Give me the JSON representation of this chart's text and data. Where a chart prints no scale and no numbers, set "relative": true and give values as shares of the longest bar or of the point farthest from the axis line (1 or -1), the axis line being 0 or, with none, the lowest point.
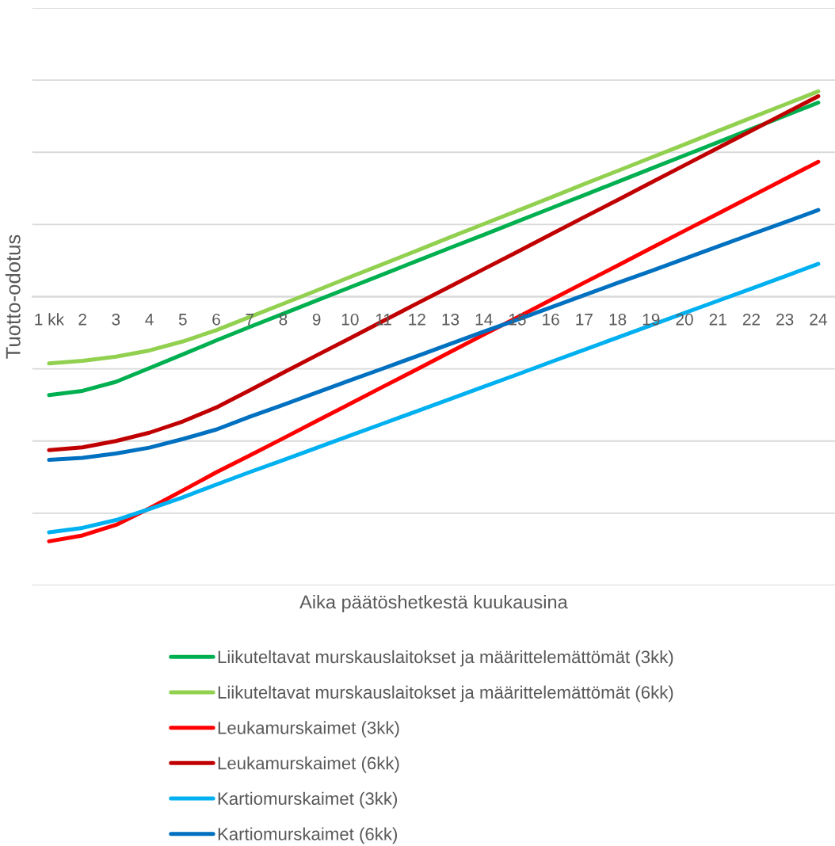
{
  "chart_data": {
    "type": "line",
    "relative": true,
    "xlabel": "Aika päätöshetkestä kuukausina",
    "ylabel": "Tuotto-odotus",
    "categories": [
      "1 kk",
      "2",
      "3",
      "4",
      "5",
      "6",
      "7",
      "8",
      "9",
      "10",
      "11",
      "12",
      "13",
      "14",
      "15",
      "16",
      "17",
      "18",
      "19",
      "20",
      "21",
      "22",
      "23",
      "24"
    ],
    "series": [
      {
        "name": "Liikuteltavat murskauslaitokset ja määrittelemättömät (3kk)",
        "color": "#00b050",
        "values": [
          -0.402,
          -0.385,
          -0.348,
          -0.292,
          -0.236,
          -0.179,
          -0.124,
          -0.07,
          -0.016,
          0.038,
          0.092,
          0.146,
          0.2,
          0.253,
          0.307,
          0.361,
          0.415,
          0.469,
          0.523,
          0.577,
          0.631,
          0.685,
          0.739,
          0.793
        ]
      },
      {
        "name": "Liikuteltavat murskauslaitokset ja määrittelemättömät (6kk)",
        "color": "#92d050",
        "values": [
          -0.273,
          -0.262,
          -0.245,
          -0.22,
          -0.183,
          -0.137,
          -0.083,
          -0.029,
          0.025,
          0.08,
          0.134,
          0.188,
          0.243,
          0.297,
          0.351,
          0.405,
          0.46,
          0.514,
          0.568,
          0.622,
          0.677,
          0.731,
          0.785,
          0.839
        ]
      },
      {
        "name": "Leukamurskaimet (3kk)",
        "color": "#ff0000",
        "values": [
          -1,
          -0.976,
          -0.933,
          -0.865,
          -0.792,
          -0.718,
          -0.649,
          -0.579,
          -0.508,
          -0.438,
          -0.367,
          -0.297,
          -0.226,
          -0.155,
          -0.085,
          -0.014,
          0.057,
          0.127,
          0.198,
          0.269,
          0.339,
          0.41,
          0.481,
          0.551
        ]
      },
      {
        "name": "Leukamurskaimet (6kk)",
        "color": "#c00000",
        "values": [
          -0.627,
          -0.616,
          -0.59,
          -0.556,
          -0.51,
          -0.453,
          -0.383,
          -0.311,
          -0.24,
          -0.17,
          -0.099,
          -0.028,
          0.042,
          0.113,
          0.183,
          0.254,
          0.325,
          0.395,
          0.466,
          0.537,
          0.608,
          0.678,
          0.749,
          0.819
        ]
      },
      {
        "name": "Kartiomurskaimet (3kk)",
        "color": "#00b0f0",
        "values": [
          -0.963,
          -0.945,
          -0.913,
          -0.868,
          -0.82,
          -0.768,
          -0.717,
          -0.668,
          -0.618,
          -0.568,
          -0.518,
          -0.468,
          -0.418,
          -0.368,
          -0.318,
          -0.267,
          -0.217,
          -0.167,
          -0.117,
          -0.067,
          -0.017,
          0.033,
          0.083,
          0.134
        ]
      },
      {
        "name": "Kartiomurskaimet (6kk)",
        "color": "#0070c0",
        "values": [
          -0.667,
          -0.659,
          -0.641,
          -0.617,
          -0.582,
          -0.543,
          -0.491,
          -0.442,
          -0.392,
          -0.342,
          -0.293,
          -0.243,
          -0.193,
          -0.143,
          -0.094,
          -0.044,
          0.006,
          0.056,
          0.105,
          0.155,
          0.205,
          0.255,
          0.304,
          0.354
        ]
      }
    ],
    "grid": "y",
    "legend": "bottom",
    "line_style": "solid"
  }
}
